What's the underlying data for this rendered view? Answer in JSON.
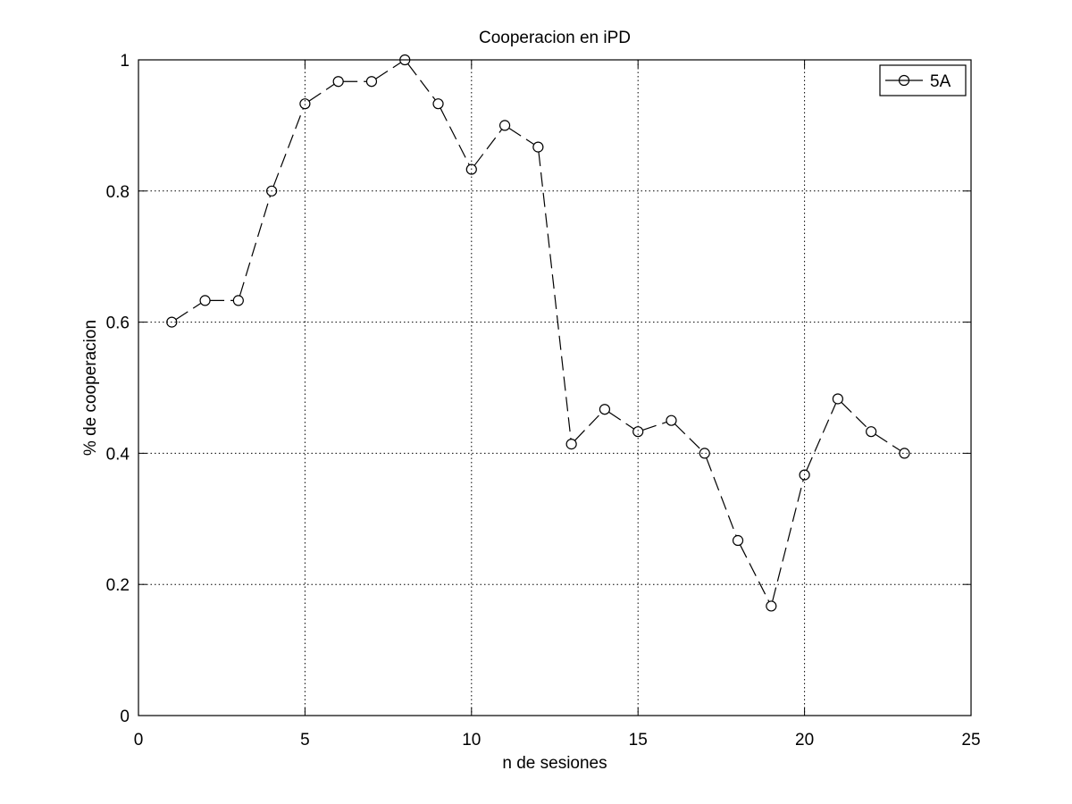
{
  "chart_data": {
    "type": "line",
    "title": "Cooperacion en iPD",
    "xlabel": "n de sesiones",
    "ylabel": "% de cooperacion",
    "xlim": [
      0,
      25
    ],
    "ylim": [
      0,
      1
    ],
    "xticks": [
      0,
      5,
      10,
      15,
      20,
      25
    ],
    "yticks": [
      0,
      0.2,
      0.4,
      0.6,
      0.8,
      1
    ],
    "xtick_labels": [
      "0",
      "5",
      "10",
      "15",
      "20",
      "25"
    ],
    "ytick_labels": [
      "0",
      "0.2",
      "0.4",
      "0.6",
      "0.8",
      "1"
    ],
    "grid": true,
    "legend_position": "top-right",
    "series": [
      {
        "name": "5A",
        "color": "#000000",
        "line_style": "dashed",
        "marker": "circle",
        "x": [
          1,
          2,
          3,
          4,
          5,
          6,
          7,
          8,
          9,
          10,
          11,
          12,
          13,
          14,
          15,
          16,
          17,
          18,
          19,
          20,
          21,
          22,
          23
        ],
        "y": [
          0.6,
          0.633,
          0.633,
          0.8,
          0.933,
          0.967,
          0.967,
          1.0,
          0.933,
          0.833,
          0.9,
          0.867,
          0.414,
          0.467,
          0.433,
          0.45,
          0.4,
          0.267,
          0.167,
          0.367,
          0.483,
          0.433,
          0.4
        ]
      }
    ]
  }
}
